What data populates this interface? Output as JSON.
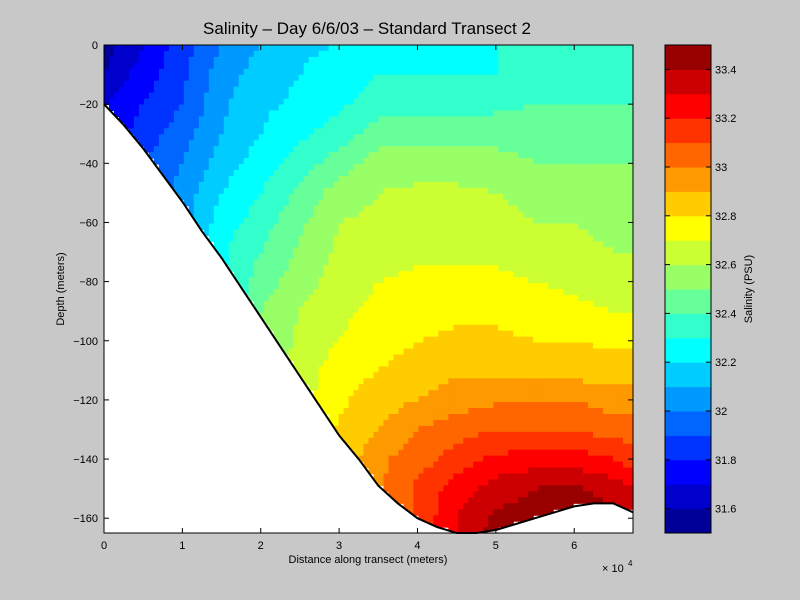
{
  "chart_data": {
    "type": "heatmap",
    "subtype": "filled-contour",
    "title": "Salinity – Day 6/6/03 – Standard Transect 2",
    "xlabel": "Distance along transect (meters)",
    "ylabel": "Depth (meters)",
    "x_multiplier": "× 10",
    "x_multiplier_exponent": "4",
    "xlim": [
      0,
      6.75
    ],
    "ylim": [
      -165,
      0
    ],
    "x_ticks": [
      0,
      1,
      2,
      3,
      4,
      5,
      6
    ],
    "x_tick_labels": [
      "0",
      "1",
      "2",
      "3",
      "4",
      "5",
      "6"
    ],
    "y_ticks": [
      0,
      -20,
      -40,
      -60,
      -80,
      -100,
      -120,
      -140,
      -160
    ],
    "y_tick_labels": [
      "0",
      "−20",
      "−40",
      "−60",
      "−80",
      "−100",
      "−120",
      "−140",
      "−160"
    ],
    "colorbar": {
      "label": "Salinity (PSU)",
      "min": 31.5,
      "max": 33.5,
      "step": 0.1,
      "tick_values": [
        31.6,
        31.8,
        32,
        32.2,
        32.4,
        32.6,
        32.8,
        33,
        33.2,
        33.4
      ],
      "tick_labels": [
        "31.6",
        "31.8",
        "32",
        "32.2",
        "32.4",
        "32.6",
        "32.8",
        "33",
        "33.2",
        "33.4"
      ]
    },
    "x": [
      0,
      0.5,
      1,
      1.5,
      2,
      2.5,
      3,
      3.5,
      4,
      4.5,
      5,
      5.5,
      6,
      6.5,
      6.75
    ],
    "depth": [
      0,
      -10,
      -20,
      -30,
      -40,
      -50,
      -60,
      -70,
      -80,
      -90,
      -100,
      -110,
      -120,
      -130,
      -140,
      -150,
      -160,
      -165
    ],
    "salinity": [
      [
        31.55,
        31.7,
        31.85,
        32.0,
        32.1,
        32.18,
        32.2,
        32.25,
        32.25,
        32.25,
        32.3,
        32.3,
        32.3,
        32.3,
        32.3
      ],
      [
        31.6,
        31.75,
        31.88,
        32.05,
        32.15,
        32.2,
        32.25,
        32.3,
        32.3,
        32.3,
        32.3,
        32.35,
        32.35,
        32.35,
        32.35
      ],
      [
        31.7,
        31.8,
        31.9,
        32.08,
        32.18,
        32.22,
        32.28,
        32.35,
        32.35,
        32.35,
        32.38,
        32.4,
        32.4,
        32.4,
        32.4
      ],
      [
        null,
        31.85,
        31.95,
        32.1,
        32.2,
        32.28,
        32.35,
        32.45,
        32.45,
        32.45,
        32.45,
        32.45,
        32.45,
        32.45,
        32.45
      ],
      [
        null,
        31.9,
        32.0,
        32.15,
        32.25,
        32.35,
        32.45,
        32.55,
        32.55,
        32.55,
        32.55,
        32.5,
        32.5,
        32.5,
        32.5
      ],
      [
        null,
        null,
        32.05,
        32.2,
        32.3,
        32.42,
        32.55,
        32.6,
        32.62,
        32.62,
        32.6,
        32.58,
        32.55,
        32.55,
        32.55
      ],
      [
        null,
        null,
        null,
        32.25,
        32.35,
        32.48,
        32.6,
        32.62,
        32.65,
        32.65,
        32.62,
        32.6,
        32.6,
        32.58,
        32.58
      ],
      [
        null,
        null,
        null,
        32.28,
        32.4,
        32.52,
        32.62,
        32.65,
        32.68,
        32.68,
        32.68,
        32.65,
        32.62,
        32.6,
        32.6
      ],
      [
        null,
        null,
        null,
        null,
        32.45,
        32.55,
        32.65,
        32.7,
        32.72,
        32.72,
        32.72,
        32.7,
        32.68,
        32.65,
        32.62
      ],
      [
        null,
        null,
        null,
        null,
        32.5,
        32.6,
        32.68,
        32.72,
        32.75,
        32.78,
        32.78,
        32.75,
        32.72,
        32.7,
        32.7
      ],
      [
        null,
        null,
        null,
        null,
        null,
        32.62,
        32.7,
        32.75,
        32.8,
        32.82,
        32.82,
        32.8,
        32.8,
        32.78,
        32.78
      ],
      [
        null,
        null,
        null,
        null,
        null,
        32.65,
        32.75,
        32.8,
        32.85,
        32.88,
        32.88,
        32.88,
        32.85,
        32.85,
        32.85
      ],
      [
        null,
        null,
        null,
        null,
        null,
        null,
        32.78,
        32.85,
        32.9,
        32.95,
        32.98,
        33.0,
        33.0,
        32.95,
        32.95
      ],
      [
        null,
        null,
        null,
        null,
        null,
        null,
        32.82,
        32.9,
        33.0,
        33.05,
        33.1,
        33.1,
        33.1,
        33.05,
        33.05
      ],
      [
        null,
        null,
        null,
        null,
        null,
        null,
        null,
        32.98,
        33.05,
        33.15,
        33.22,
        33.25,
        33.25,
        33.2,
        33.15
      ],
      [
        null,
        null,
        null,
        null,
        null,
        null,
        null,
        null,
        33.12,
        33.25,
        33.35,
        33.4,
        33.42,
        33.35,
        33.3
      ],
      [
        null,
        null,
        null,
        null,
        null,
        null,
        null,
        null,
        null,
        33.3,
        33.42,
        33.45,
        33.45,
        33.45,
        33.4
      ],
      [
        null,
        null,
        null,
        null,
        null,
        null,
        null,
        null,
        null,
        33.3,
        33.45,
        33.48,
        33.48,
        33.48,
        33.45
      ]
    ],
    "bottom_profile": [
      [
        0,
        -20
      ],
      [
        0.25,
        -27
      ],
      [
        0.5,
        -35
      ],
      [
        0.75,
        -44
      ],
      [
        1,
        -53
      ],
      [
        1.25,
        -63
      ],
      [
        1.5,
        -72
      ],
      [
        1.75,
        -82
      ],
      [
        2,
        -92
      ],
      [
        2.25,
        -102
      ],
      [
        2.5,
        -112
      ],
      [
        2.75,
        -122
      ],
      [
        3,
        -132
      ],
      [
        3.25,
        -140
      ],
      [
        3.5,
        -149
      ],
      [
        3.75,
        -155
      ],
      [
        4,
        -160
      ],
      [
        4.25,
        -163
      ],
      [
        4.5,
        -165
      ],
      [
        4.75,
        -165
      ],
      [
        5,
        -164
      ],
      [
        5.25,
        -162
      ],
      [
        5.5,
        -160
      ],
      [
        5.75,
        -158
      ],
      [
        6,
        -156
      ],
      [
        6.25,
        -155
      ],
      [
        6.5,
        -155
      ],
      [
        6.75,
        -158
      ]
    ]
  }
}
